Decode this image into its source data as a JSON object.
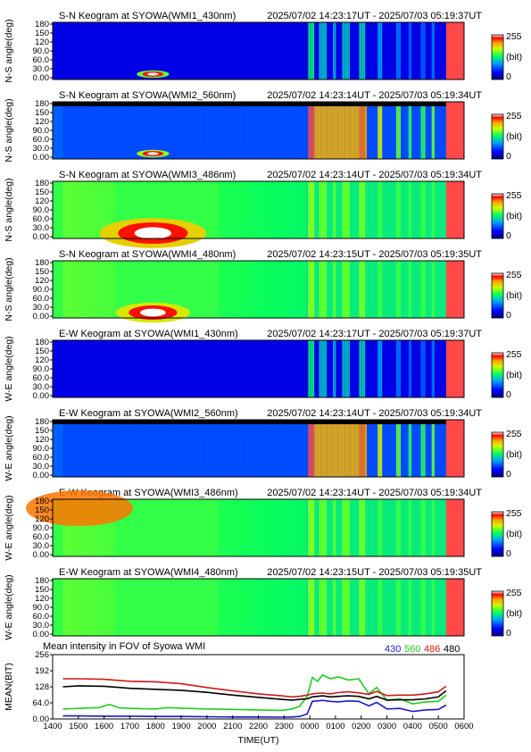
{
  "chart_data": {
    "type": "heatmap",
    "keograms": [
      {
        "title": "S-N Keogram at SYOWA(WMI1_430nm)",
        "range": "2025/07/02 14:23:17UT - 2025/07/03 05:19:37UT",
        "ylabel": "N-S angle(deg)",
        "yticks": [
          "180",
          "150",
          "120",
          "90.0",
          "60.0",
          "30.0",
          "0.00"
        ],
        "colorbar": {
          "max": "255",
          "unit": "(bit)",
          "min": "0"
        }
      },
      {
        "title": "S-N Keogram at SYOWA(WMI2_560nm)",
        "range": "2025/07/02 14:23:14UT - 2025/07/03 05:19:34UT",
        "ylabel": "N-S angle(deg)",
        "yticks": [
          "180",
          "150",
          "120",
          "90.0",
          "60.0",
          "30.0",
          "0.00"
        ],
        "colorbar": {
          "max": "255",
          "unit": "(bit)",
          "min": "0"
        }
      },
      {
        "title": "S-N Keogram at SYOWA(WMI3_486nm)",
        "range": "2025/07/02 14:23:14UT - 2025/07/03 05:19:34UT",
        "ylabel": "N-S angle(deg)",
        "yticks": [
          "180",
          "150",
          "120",
          "90.0",
          "60.0",
          "30.0",
          "0.00"
        ],
        "colorbar": {
          "max": "255",
          "unit": "(bit)",
          "min": "0"
        }
      },
      {
        "title": "S-N Keogram at SYOWA(WMI4_480nm)",
        "range": "2025/07/02 14:23:15UT - 2025/07/03 05:19:35UT",
        "ylabel": "N-S angle(deg)",
        "yticks": [
          "180",
          "150",
          "120",
          "90.0",
          "60.0",
          "30.0",
          "0.00"
        ],
        "colorbar": {
          "max": "255",
          "unit": "(bit)",
          "min": "0"
        }
      },
      {
        "title": "E-W Keogram at SYOWA(WMI1_430nm)",
        "range": "2025/07/02 14:23:17UT - 2025/07/03 05:19:37UT",
        "ylabel": "W-E angle(deg)",
        "yticks": [
          "180",
          "150",
          "120",
          "90.0",
          "60.0",
          "30.0",
          "0.00"
        ],
        "colorbar": {
          "max": "255",
          "unit": "(bit)",
          "min": "0"
        }
      },
      {
        "title": "E-W Keogram at SYOWA(WMI2_560nm)",
        "range": "2025/07/02 14:23:14UT - 2025/07/03 05:19:34UT",
        "ylabel": "W-E angle(deg)",
        "yticks": [
          "180",
          "150",
          "120",
          "90.0",
          "60.0",
          "30.0",
          "0.00"
        ],
        "colorbar": {
          "max": "255",
          "unit": "(bit)",
          "min": "0"
        }
      },
      {
        "title": "E-W Keogram at SYOWA(WMI3_486nm)",
        "range": "2025/07/02 14:23:14UT - 2025/07/03 05:19:34UT",
        "ylabel": "W-E angle(deg)",
        "yticks": [
          "180",
          "150",
          "120",
          "90.0",
          "60.0",
          "30.0",
          "0.00"
        ],
        "colorbar": {
          "max": "255",
          "unit": "(bit)",
          "min": "0"
        }
      },
      {
        "title": "E-W Keogram at SYOWA(WMI4_480nm)",
        "range": "2025/07/02 14:23:15UT - 2025/07/03 05:19:35UT",
        "ylabel": "W-E angle(deg)",
        "yticks": [
          "180",
          "150",
          "120",
          "90.0",
          "60.0",
          "30.0",
          "0.00"
        ],
        "colorbar": {
          "max": "255",
          "unit": "(bit)",
          "min": "0"
        }
      }
    ],
    "mean_plot": {
      "type": "line",
      "title": "Mean intensity in FOV of Syowa WMI",
      "ylabel": "MEAN(BIT)",
      "xlabel": "TIME(UT)",
      "yticks": [
        "256",
        "192",
        "128",
        "64.0",
        "0.00"
      ],
      "ylim": [
        0,
        256
      ],
      "x_ticks": [
        "1400",
        "1500",
        "1600",
        "1700",
        "1800",
        "1900",
        "2000",
        "2100",
        "2200",
        "2300",
        "0000",
        "0100",
        "0200",
        "0300",
        "0400",
        "0500",
        "0600"
      ],
      "x_hours": [
        14,
        30
      ],
      "series": [
        {
          "name": "430",
          "color": "#1a1ac8",
          "x": [
            14.4,
            15.0,
            16.0,
            17.0,
            18.0,
            19.0,
            20.0,
            21.0,
            22.0,
            22.9,
            23.3,
            23.6,
            23.9,
            24.1,
            24.3,
            24.5,
            24.8,
            25.1,
            25.5,
            25.9,
            26.3,
            26.6,
            27.0,
            27.5,
            28.0,
            28.5,
            29.0,
            29.3
          ],
          "values": [
            12,
            12,
            11,
            11,
            10,
            10,
            9,
            8,
            8,
            7,
            8,
            10,
            20,
            70,
            72,
            74,
            70,
            68,
            72,
            70,
            52,
            66,
            40,
            42,
            30,
            36,
            38,
            55
          ]
        },
        {
          "name": "560",
          "color": "#22cc22",
          "x": [
            14.4,
            15.0,
            15.8,
            16.2,
            16.6,
            17.0,
            18.0,
            18.5,
            19.0,
            20.0,
            21.0,
            22.0,
            22.9,
            23.3,
            23.6,
            23.9,
            24.1,
            24.3,
            24.5,
            24.8,
            25.1,
            25.5,
            25.9,
            26.3,
            26.6,
            27.0,
            27.5,
            28.0,
            28.5,
            29.0,
            29.3
          ],
          "values": [
            40,
            42,
            45,
            58,
            44,
            42,
            40,
            45,
            43,
            40,
            38,
            36,
            34,
            40,
            50,
            90,
            165,
            150,
            175,
            160,
            168,
            155,
            160,
            100,
            125,
            75,
            80,
            60,
            68,
            70,
            95
          ]
        },
        {
          "name": "486",
          "color": "#d01818",
          "x": [
            14.4,
            15.0,
            16.0,
            17.0,
            18.0,
            19.0,
            20.0,
            21.0,
            22.0,
            22.9,
            23.3,
            23.6,
            23.9,
            24.1,
            24.3,
            24.5,
            24.8,
            25.1,
            25.5,
            25.9,
            26.3,
            26.6,
            27.0,
            27.5,
            28.0,
            28.5,
            29.0,
            29.3
          ],
          "values": [
            160,
            160,
            158,
            150,
            148,
            140,
            125,
            112,
            100,
            92,
            88,
            90,
            95,
            100,
            102,
            103,
            100,
            105,
            108,
            104,
            98,
            110,
            93,
            95,
            95,
            100,
            108,
            130
          ]
        },
        {
          "name": "480",
          "color": "#000000",
          "x": [
            14.4,
            15.0,
            16.0,
            17.0,
            18.0,
            19.0,
            20.0,
            21.0,
            22.0,
            22.9,
            23.3,
            23.6,
            23.9,
            24.1,
            24.3,
            24.5,
            24.8,
            25.1,
            25.5,
            25.9,
            26.3,
            26.6,
            27.0,
            27.5,
            28.0,
            28.5,
            29.0,
            29.3
          ],
          "values": [
            128,
            132,
            130,
            122,
            118,
            114,
            106,
            95,
            86,
            78,
            75,
            78,
            80,
            88,
            90,
            92,
            88,
            90,
            92,
            90,
            80,
            90,
            75,
            76,
            76,
            80,
            88,
            112
          ]
        }
      ]
    }
  }
}
